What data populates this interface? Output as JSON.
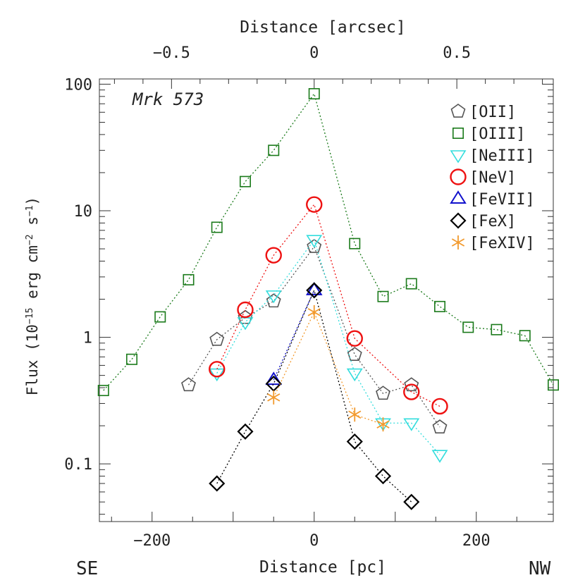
{
  "chart_data": {
    "type": "scatter",
    "title": "Mrk 573",
    "xlabel": "Distance [pc]",
    "xlabel_top": "Distance [arcsec]",
    "ylabel_html": "Flux (10<tspan baseline-shift=\"super\" font-size=\"13\">−15</tspan> erg cm<tspan baseline-shift=\"super\" font-size=\"13\">−2</tspan> s<tspan baseline-shift=\"super\" font-size=\"13\">−1</tspan>)",
    "corner_left": "SE",
    "corner_right": "NW",
    "xlim": [
      -265,
      295
    ],
    "ylim": [
      0.035,
      110
    ],
    "yscale": "log",
    "xticks": [
      -200,
      0,
      200
    ],
    "xtick_labels": [
      "−200",
      "0",
      "200"
    ],
    "xticks_top": [
      -0.5,
      0,
      0.5
    ],
    "xtick_top_labels": [
      "−0.5",
      "0",
      "0.5"
    ],
    "arcsec_to_pc": 352,
    "yticks": [
      0.1,
      1,
      10,
      100
    ],
    "ytick_labels": [
      "0.1",
      "1",
      "10",
      "100"
    ],
    "grid": false,
    "legend_position": "top-right",
    "series": [
      {
        "name": "[OII]",
        "marker": "pentagon",
        "color": "#555555",
        "x": [
          -155,
          -120,
          -85,
          -50,
          0,
          50,
          85,
          120,
          155
        ],
        "y": [
          0.42,
          0.96,
          1.43,
          1.93,
          5.2,
          0.73,
          0.36,
          0.42,
          0.195
        ]
      },
      {
        "name": "[OIII]",
        "marker": "square",
        "color": "#1a7a1a",
        "x": [
          -260,
          -225,
          -190,
          -155,
          -120,
          -85,
          -50,
          0,
          50,
          85,
          120,
          155,
          190,
          225,
          260,
          295
        ],
        "y": [
          0.38,
          0.67,
          1.45,
          2.85,
          7.4,
          17,
          30,
          84,
          5.5,
          2.1,
          2.65,
          1.75,
          1.2,
          1.15,
          1.03,
          0.42
        ]
      },
      {
        "name": "[NeIII]",
        "marker": "triangle-down",
        "color": "#33dddd",
        "x": [
          -120,
          -85,
          -50,
          0,
          50,
          85,
          120,
          155
        ],
        "y": [
          0.52,
          1.32,
          2.15,
          5.9,
          0.52,
          0.21,
          0.21,
          0.118
        ]
      },
      {
        "name": "[NeV]",
        "marker": "circle",
        "color": "#ee1111",
        "x": [
          -120,
          -85,
          -50,
          0,
          50,
          120,
          155
        ],
        "y": [
          0.56,
          1.65,
          4.45,
          11.2,
          0.98,
          0.37,
          0.285
        ]
      },
      {
        "name": "[FeVII]",
        "marker": "triangle-up",
        "color": "#1111cc",
        "x": [
          -50,
          0
        ],
        "y": [
          0.46,
          2.35
        ]
      },
      {
        "name": "[FeX]",
        "marker": "diamond",
        "color": "#000000",
        "x": [
          -120,
          -85,
          -50,
          0,
          50,
          85,
          120
        ],
        "y": [
          0.07,
          0.18,
          0.43,
          2.35,
          0.15,
          0.08,
          0.05
        ]
      },
      {
        "name": "[FeXIV]",
        "marker": "asterisk",
        "color": "#f29a2e",
        "x": [
          -50,
          0,
          50,
          85
        ],
        "y": [
          0.335,
          1.58,
          0.245,
          0.205
        ]
      }
    ]
  }
}
